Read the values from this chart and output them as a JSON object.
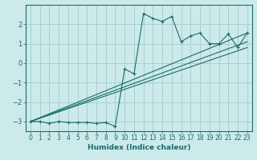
{
  "xlabel": "Humidex (Indice chaleur)",
  "bg_color": "#cceaea",
  "grid_color": "#aacfcf",
  "line_color": "#1a6b6b",
  "marker": "+",
  "xlim": [
    -0.5,
    23.5
  ],
  "ylim": [
    -3.5,
    3.0
  ],
  "yticks": [
    -3,
    -2,
    -1,
    0,
    1,
    2
  ],
  "xticks": [
    0,
    1,
    2,
    3,
    4,
    5,
    6,
    7,
    8,
    9,
    10,
    11,
    12,
    13,
    14,
    15,
    16,
    17,
    18,
    19,
    20,
    21,
    22,
    23
  ],
  "series": [
    [
      0,
      -3.0
    ],
    [
      1,
      -3.0
    ],
    [
      2,
      -3.1
    ],
    [
      3,
      -3.0
    ],
    [
      4,
      -3.05
    ],
    [
      5,
      -3.05
    ],
    [
      6,
      -3.05
    ],
    [
      7,
      -3.1
    ],
    [
      8,
      -3.05
    ],
    [
      9,
      -3.25
    ],
    [
      10,
      -0.3
    ],
    [
      11,
      -0.55
    ],
    [
      12,
      2.55
    ],
    [
      13,
      2.3
    ],
    [
      14,
      2.15
    ],
    [
      15,
      2.4
    ],
    [
      16,
      1.1
    ],
    [
      17,
      1.4
    ],
    [
      18,
      1.55
    ],
    [
      19,
      1.0
    ],
    [
      20,
      1.0
    ],
    [
      21,
      1.5
    ],
    [
      22,
      0.8
    ],
    [
      23,
      1.55
    ]
  ],
  "line1": [
    [
      0,
      -3.0
    ],
    [
      23,
      0.8
    ]
  ],
  "line2": [
    [
      0,
      -3.0
    ],
    [
      23,
      1.55
    ]
  ],
  "line3": [
    [
      0,
      -3.0
    ],
    [
      23,
      1.1
    ]
  ]
}
